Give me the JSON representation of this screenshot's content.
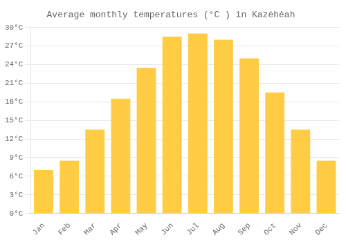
{
  "chart_data": {
    "type": "bar",
    "title": "Average monthly temperatures (°C ) in Kazėhėah",
    "categories": [
      "Jan",
      "Feb",
      "Mar",
      "Apr",
      "May",
      "Jun",
      "Jul",
      "Aug",
      "Sep",
      "Oct",
      "Nov",
      "Dec"
    ],
    "values": [
      7.0,
      8.5,
      13.5,
      18.5,
      23.5,
      28.5,
      29.0,
      28.0,
      25.0,
      19.5,
      13.5,
      8.5
    ],
    "color": "#FFCC44",
    "ylim": [
      0,
      30
    ],
    "yticks": [
      {
        "value": 0,
        "label": "0°C"
      },
      {
        "value": 3,
        "label": "3°C"
      },
      {
        "value": 6,
        "label": "6°C"
      },
      {
        "value": 9,
        "label": "9°C"
      },
      {
        "value": 12,
        "label": "12°C"
      },
      {
        "value": 15,
        "label": "15°C"
      },
      {
        "value": 18,
        "label": "18°C"
      },
      {
        "value": 21,
        "label": "21°C"
      },
      {
        "value": 24,
        "label": "24°C"
      },
      {
        "value": 27,
        "label": "27°C"
      },
      {
        "value": 30,
        "label": "30°C"
      }
    ],
    "grid": true
  }
}
